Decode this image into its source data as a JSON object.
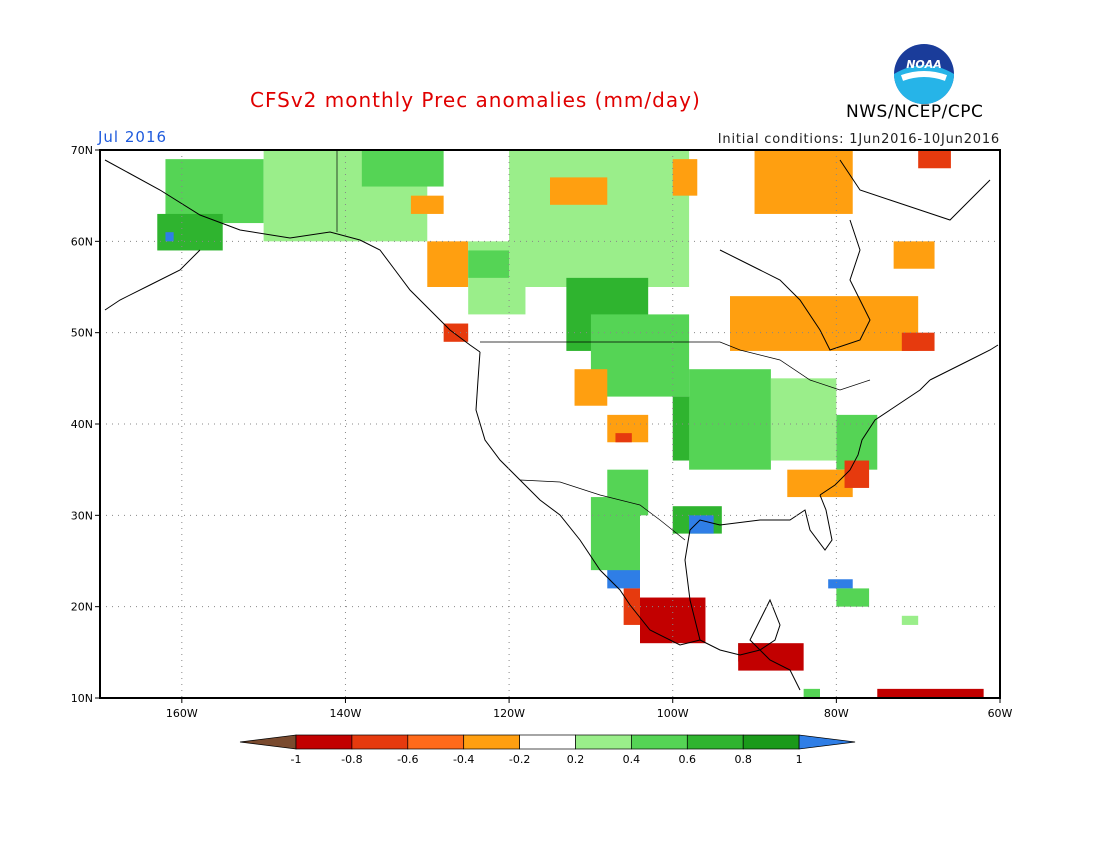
{
  "title": "CFSv2 monthly Prec anomalies (mm/day)",
  "agency": "NWS/NCEP/CPC",
  "logo_text": "NOAA",
  "period": "Jul 2016",
  "initial_conditions": "Initial conditions: 1Jun2016-10Jun2016",
  "colors": {
    "title": "#e00000",
    "period": "#1e5adc",
    "grid": "#888888"
  },
  "map": {
    "lon_range": [
      -170,
      -60
    ],
    "lat_range": [
      10,
      70
    ],
    "lat_labels": [
      "70N",
      "60N",
      "50N",
      "40N",
      "30N",
      "20N",
      "10N"
    ],
    "lon_labels": [
      "160W",
      "140W",
      "120W",
      "100W",
      "80W",
      "60W"
    ],
    "lat_values": [
      70,
      60,
      50,
      40,
      30,
      20,
      10
    ],
    "lon_values": [
      -160,
      -140,
      -120,
      -100,
      -80,
      -60
    ]
  },
  "colorbar": {
    "labels": [
      "-1",
      "-0.8",
      "-0.6",
      "-0.4",
      "-0.2",
      "0.2",
      "0.4",
      "0.6",
      "0.8",
      "1"
    ],
    "colors": [
      "#7a4a2e",
      "#c20000",
      "#e63a0e",
      "#ff6a1a",
      "#ff9f10",
      "#ffffff",
      "#9aee8a",
      "#55d455",
      "#2fb42f",
      "#1a9a1a",
      "#2f7ee6"
    ]
  },
  "anomaly_regions": [
    {
      "color": "#55d455",
      "lon": [
        -162,
        -150
      ],
      "lat": [
        62,
        69
      ]
    },
    {
      "color": "#2fb42f",
      "lon": [
        -163,
        -155
      ],
      "lat": [
        59,
        63
      ]
    },
    {
      "color": "#2f7ee6",
      "lon": [
        -162,
        -161
      ],
      "lat": [
        60,
        61
      ]
    },
    {
      "color": "#9aee8a",
      "lon": [
        -150,
        -130
      ],
      "lat": [
        60,
        70
      ]
    },
    {
      "color": "#55d455",
      "lon": [
        -138,
        -128
      ],
      "lat": [
        66,
        70
      ]
    },
    {
      "color": "#ff9f10",
      "lon": [
        -132,
        -128
      ],
      "lat": [
        63,
        65
      ]
    },
    {
      "color": "#ff9f10",
      "lon": [
        -130,
        -125
      ],
      "lat": [
        55,
        60
      ]
    },
    {
      "color": "#e63a0e",
      "lon": [
        -128,
        -125
      ],
      "lat": [
        49,
        51
      ]
    },
    {
      "color": "#9aee8a",
      "lon": [
        -125,
        -118
      ],
      "lat": [
        52,
        60
      ]
    },
    {
      "color": "#55d455",
      "lon": [
        -125,
        -120
      ],
      "lat": [
        56,
        59
      ]
    },
    {
      "color": "#9aee8a",
      "lon": [
        -120,
        -98
      ],
      "lat": [
        55,
        70
      ]
    },
    {
      "color": "#2fb42f",
      "lon": [
        -113,
        -103
      ],
      "lat": [
        48,
        56
      ]
    },
    {
      "color": "#55d455",
      "lon": [
        -110,
        -98
      ],
      "lat": [
        43,
        52
      ]
    },
    {
      "color": "#ff9f10",
      "lon": [
        -112,
        -108
      ],
      "lat": [
        42,
        46
      ]
    },
    {
      "color": "#ff9f10",
      "lon": [
        -108,
        -103
      ],
      "lat": [
        38,
        41
      ]
    },
    {
      "color": "#e63a0e",
      "lon": [
        -107,
        -105
      ],
      "lat": [
        38,
        39
      ]
    },
    {
      "color": "#2fb42f",
      "lon": [
        -100,
        -95
      ],
      "lat": [
        36,
        43
      ]
    },
    {
      "color": "#55d455",
      "lon": [
        -98,
        -88
      ],
      "lat": [
        35,
        46
      ]
    },
    {
      "color": "#9aee8a",
      "lon": [
        -88,
        -80
      ],
      "lat": [
        36,
        45
      ]
    },
    {
      "color": "#55d455",
      "lon": [
        -80,
        -75
      ],
      "lat": [
        35,
        41
      ]
    },
    {
      "color": "#ff9f10",
      "lon": [
        -86,
        -78
      ],
      "lat": [
        32,
        35
      ]
    },
    {
      "color": "#e63a0e",
      "lon": [
        -79,
        -76
      ],
      "lat": [
        33,
        36
      ]
    },
    {
      "color": "#ff9f10",
      "lon": [
        -93,
        -70
      ],
      "lat": [
        48,
        54
      ]
    },
    {
      "color": "#e63a0e",
      "lon": [
        -72,
        -68
      ],
      "lat": [
        48,
        50
      ]
    },
    {
      "color": "#ff9f10",
      "lon": [
        -73,
        -68
      ],
      "lat": [
        57,
        60
      ]
    },
    {
      "color": "#ff9f10",
      "lon": [
        -90,
        -78
      ],
      "lat": [
        63,
        70
      ]
    },
    {
      "color": "#e63a0e",
      "lon": [
        -70,
        -66
      ],
      "lat": [
        68,
        70
      ]
    },
    {
      "color": "#ff9f10",
      "lon": [
        -115,
        -108
      ],
      "lat": [
        64,
        67
      ]
    },
    {
      "color": "#ff9f10",
      "lon": [
        -100,
        -97
      ],
      "lat": [
        65,
        69
      ]
    },
    {
      "color": "#55d455",
      "lon": [
        -108,
        -103
      ],
      "lat": [
        30,
        35
      ]
    },
    {
      "color": "#2fb42f",
      "lon": [
        -100,
        -94
      ],
      "lat": [
        28,
        31
      ]
    },
    {
      "color": "#2f7ee6",
      "lon": [
        -98,
        -95
      ],
      "lat": [
        28,
        30
      ]
    },
    {
      "color": "#2f7ee6",
      "lon": [
        -108,
        -104
      ],
      "lat": [
        22,
        28
      ]
    },
    {
      "color": "#55d455",
      "lon": [
        -110,
        -104
      ],
      "lat": [
        24,
        32
      ]
    },
    {
      "color": "#e63a0e",
      "lon": [
        -106,
        -104
      ],
      "lat": [
        18,
        22
      ]
    },
    {
      "color": "#7a4a2e",
      "lon": [
        -102,
        -98
      ],
      "lat": [
        17,
        20
      ]
    },
    {
      "color": "#c20000",
      "lon": [
        -104,
        -96
      ],
      "lat": [
        16,
        21
      ]
    },
    {
      "color": "#7a4a2e",
      "lon": [
        -92,
        -88
      ],
      "lat": [
        14,
        16
      ]
    },
    {
      "color": "#c20000",
      "lon": [
        -92,
        -84
      ],
      "lat": [
        13,
        16
      ]
    },
    {
      "color": "#2f7ee6",
      "lon": [
        -81,
        -78
      ],
      "lat": [
        22,
        23
      ]
    },
    {
      "color": "#55d455",
      "lon": [
        -80,
        -76
      ],
      "lat": [
        20,
        22
      ]
    },
    {
      "color": "#9aee8a",
      "lon": [
        -72,
        -70
      ],
      "lat": [
        18,
        19
      ]
    },
    {
      "color": "#55d455",
      "lon": [
        -84,
        -82
      ],
      "lat": [
        10,
        11
      ]
    },
    {
      "color": "#c20000",
      "lon": [
        -75,
        -62
      ],
      "lat": [
        10,
        11
      ]
    }
  ]
}
